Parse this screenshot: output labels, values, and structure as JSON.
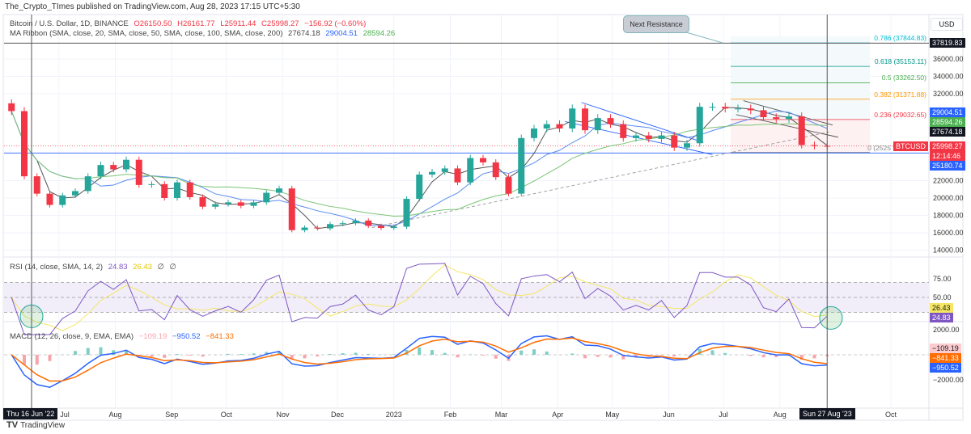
{
  "header": {
    "published": "The_Crypto_TImes published on TradingView.com, Aug 28, 2023 17:15 UTC+5:30",
    "symbol_line": "Bitcoin / U.S. Dollar, 1D, BINANCE",
    "open": "O26150.50",
    "high": "H26161.77",
    "low": "L25911.44",
    "close": "C25998.27",
    "change": "−156.92 (−0.60%)",
    "ma_title": "MA Ribbon (SMA, close, 20, SMA, close, 50, SMA, close, 100, SMA, close, 200)",
    "ma_values": [
      "27674.18",
      "29004.51",
      "28594.26"
    ],
    "rsi_title": "RSI (14, close, SMA, 14, 2)",
    "rsi_values": [
      "24.83",
      "26.43",
      "∅",
      "∅"
    ],
    "macd_title": "MACD (12, 26, close, 9, EMA, EMA)",
    "macd_values": [
      "−109.19",
      "−950.52",
      "−841.33"
    ]
  },
  "currency_button": "USD",
  "annotation": "Next Resistance",
  "brand": "TradingView",
  "colors": {
    "up": "#26a69a",
    "down": "#f23645",
    "ma20": "#555555",
    "ma50": "#5b8def",
    "ma100": "#7cc576",
    "rsi": "#7e57c2",
    "rsi_ma": "#f5e663",
    "macd": "#2962ff",
    "signal": "#ff6d00"
  },
  "price_tags": [
    {
      "label": "37819.83",
      "bg": "#131722",
      "price": 37819.83
    },
    {
      "label": "29004.51",
      "bg": "#2962ff",
      "price": 29004.51
    },
    {
      "label": "28594.26",
      "bg": "#4caf50",
      "price": 28594.26
    },
    {
      "label": "27674.18",
      "bg": "#131722",
      "price": 27674.18
    },
    {
      "label": "25998.27",
      "sub": "12:14:46",
      "bg": "#f23645",
      "price": 25998.27
    },
    {
      "label": "25180.74",
      "bg": "#2962ff",
      "price": 25180.74
    }
  ],
  "symbol_tag": "BTCUSD",
  "rsi_tags": [
    {
      "label": "26.43",
      "bg": "#f5e663",
      "fg": "#131722"
    },
    {
      "label": "24.83",
      "bg": "#7e57c2",
      "fg": "#ffffff"
    }
  ],
  "macd_tags": [
    {
      "label": "−109.19",
      "bg": "#fccbcd",
      "fg": "#131722"
    },
    {
      "label": "−841.33",
      "bg": "#ff6d00",
      "fg": "#ffffff"
    },
    {
      "label": "−950.52",
      "bg": "#2962ff",
      "fg": "#ffffff"
    }
  ],
  "crosshair": {
    "left_date": "Thu 16 Jun '22",
    "right_date": "Sun 27 Aug '23"
  },
  "chart_data": {
    "type": "candlestick",
    "ylim": [
      13000,
      39000
    ],
    "price_ticks": [
      "36000.00",
      "34000.00",
      "32000.00",
      "22000.00",
      "20000.00",
      "18000.00",
      "16000.00",
      "14000.00"
    ],
    "rsi_ticks": [
      "75.00",
      "50.00"
    ],
    "macd_ticks": [
      "2000.00",
      "−2000.00"
    ],
    "time_ticks": [
      {
        "label": "Jul",
        "date": "2022-07-01"
      },
      {
        "label": "Aug",
        "date": "2022-08-01"
      },
      {
        "label": "Sep",
        "date": "2022-09-01"
      },
      {
        "label": "Oct",
        "date": "2022-10-01"
      },
      {
        "label": "Nov",
        "date": "2022-11-01"
      },
      {
        "label": "Dec",
        "date": "2022-12-01"
      },
      {
        "label": "2023",
        "date": "2023-01-01"
      },
      {
        "label": "Feb",
        "date": "2023-02-01"
      },
      {
        "label": "Mar",
        "date": "2023-03-01"
      },
      {
        "label": "Apr",
        "date": "2023-04-01"
      },
      {
        "label": "May",
        "date": "2023-05-01"
      },
      {
        "label": "Jun",
        "date": "2023-06-01"
      },
      {
        "label": "Jul",
        "date": "2023-07-01"
      },
      {
        "label": "Aug",
        "date": "2023-08-01"
      },
      {
        "label": "Oct",
        "date": "2023-10-01"
      }
    ],
    "dates": [
      "2022-06-05",
      "2022-06-12",
      "2022-06-19",
      "2022-06-26",
      "2022-07-03",
      "2022-07-10",
      "2022-07-17",
      "2022-07-24",
      "2022-07-31",
      "2022-08-07",
      "2022-08-14",
      "2022-08-21",
      "2022-08-28",
      "2022-09-04",
      "2022-09-11",
      "2022-09-18",
      "2022-09-25",
      "2022-10-02",
      "2022-10-09",
      "2022-10-16",
      "2022-10-23",
      "2022-10-30",
      "2022-11-06",
      "2022-11-13",
      "2022-11-20",
      "2022-11-27",
      "2022-12-04",
      "2022-12-11",
      "2022-12-18",
      "2022-12-25",
      "2023-01-01",
      "2023-01-08",
      "2023-01-15",
      "2023-01-22",
      "2023-01-29",
      "2023-02-05",
      "2023-02-12",
      "2023-02-19",
      "2023-02-26",
      "2023-03-05",
      "2023-03-12",
      "2023-03-19",
      "2023-03-26",
      "2023-04-02",
      "2023-04-09",
      "2023-04-16",
      "2023-04-23",
      "2023-04-30",
      "2023-05-07",
      "2023-05-14",
      "2023-05-21",
      "2023-05-28",
      "2023-06-04",
      "2023-06-11",
      "2023-06-18",
      "2023-06-25",
      "2023-07-02",
      "2023-07-09",
      "2023-07-16",
      "2023-07-23",
      "2023-07-30",
      "2023-08-06",
      "2023-08-13",
      "2023-08-20",
      "2023-08-27"
    ],
    "close": [
      30000,
      22500,
      20500,
      19200,
      20300,
      20800,
      22500,
      23800,
      23300,
      24400,
      21500,
      21600,
      20000,
      21800,
      20100,
      19000,
      19300,
      19500,
      19100,
      19500,
      20600,
      21100,
      16300,
      16600,
      16500,
      17000,
      17100,
      17400,
      16800,
      16550,
      16700,
      19900,
      22700,
      23000,
      23400,
      21800,
      24600,
      24100,
      22400,
      20500,
      26900,
      28000,
      28500,
      28000,
      30300,
      27800,
      29200,
      28500,
      26900,
      27200,
      26800,
      27200,
      25800,
      26300,
      30500,
      30500,
      30300,
      30300,
      30100,
      29300,
      29100,
      29400,
      26100,
      26000,
      25998.27
    ],
    "fibonacci": [
      {
        "ratio": "0.786",
        "label": "0.786 (37844.83)",
        "price": 37844.83,
        "color": "#00bcd4"
      },
      {
        "ratio": "0.618",
        "label": "0.618 (35153.11)",
        "price": 35153.11,
        "color": "#009688"
      },
      {
        "ratio": "0.5",
        "label": "0.5 (33262.50)",
        "price": 33262.5,
        "color": "#4caf50"
      },
      {
        "ratio": "0.382",
        "label": "0.382 (31371.88)",
        "price": 31371.88,
        "color": "#ff9800"
      },
      {
        "ratio": "0.236",
        "label": "0.236 (29032.65)",
        "price": 29032.65,
        "color": "#f23645"
      },
      {
        "ratio": "0",
        "label": "0 (2525",
        "price": 25251,
        "color": "#888888"
      }
    ],
    "resistance_price": 37819.83,
    "support_price": 25180.74
  }
}
